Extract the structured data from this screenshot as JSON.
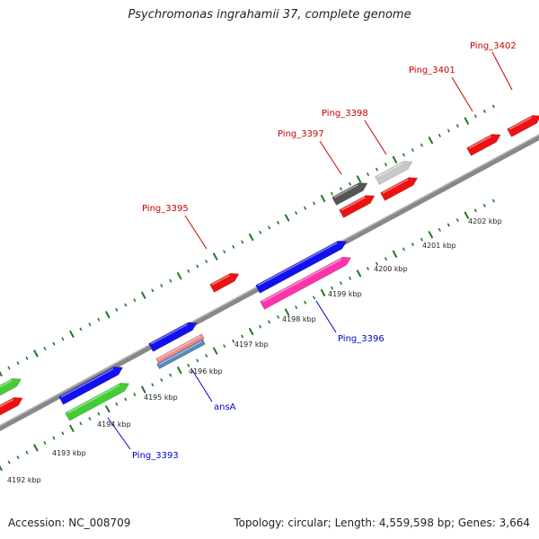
{
  "title": "Psychromonas ingrahamii 37, complete genome",
  "footer": {
    "accession": "Accession: NC_008709",
    "summary": "Topology: circular; Length: 4,559,598 bp; Genes: 3,664"
  },
  "ticks": [
    {
      "label": "4192 kbp"
    },
    {
      "label": "4193 kbp"
    },
    {
      "label": "4194 kbp"
    },
    {
      "label": "4195 kbp"
    },
    {
      "label": "4196 kbp"
    },
    {
      "label": "4197 kbp"
    },
    {
      "label": "4198 kbp"
    },
    {
      "label": "4199 kbp"
    },
    {
      "label": "4200 kbp"
    },
    {
      "label": "4201 kbp"
    },
    {
      "label": "4202 kbp"
    }
  ],
  "gene_labels": [
    {
      "name": "Ping_3393",
      "color": "#0000c8"
    },
    {
      "name": "ansA",
      "color": "#0000c8"
    },
    {
      "name": "Ping_3395",
      "color": "#c80000"
    },
    {
      "name": "Ping_3396",
      "color": "#0000c8"
    },
    {
      "name": "Ping_3397",
      "color": "#c80000"
    },
    {
      "name": "Ping_3398",
      "color": "#c80000"
    },
    {
      "name": "Ping_3401",
      "color": "#c80000"
    },
    {
      "name": "Ping_3402",
      "color": "#c80000"
    }
  ],
  "colors": {
    "red": "#ee1111",
    "blue": "#1111ee",
    "green": "#44cc33",
    "magenta": "#ff33aa",
    "dark_gray": "#555555",
    "light_gray": "#c8c8c8",
    "salmon": "#ee8888",
    "steel": "#5588bb",
    "backbone": "#888888",
    "tick": "#227722"
  }
}
